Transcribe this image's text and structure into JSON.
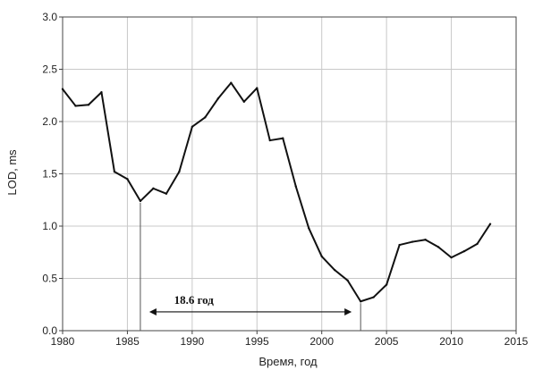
{
  "chart_data": {
    "type": "line",
    "title": "",
    "xlabel": "Время, год",
    "ylabel": "LOD, ms",
    "xlim": [
      1980,
      2015
    ],
    "ylim": [
      0.0,
      3.0
    ],
    "xticks": [
      1980,
      1985,
      1990,
      1995,
      2000,
      2005,
      2010,
      2015
    ],
    "yticks": [
      0.0,
      0.5,
      1.0,
      1.5,
      2.0,
      2.5,
      3.0
    ],
    "ytick_labels": [
      "0.0",
      "0.5",
      "1.0",
      "1.5",
      "2.0",
      "2.5",
      "3.0"
    ],
    "grid": true,
    "series": [
      {
        "x": [
          1980,
          1981,
          1982,
          1983,
          1984,
          1985,
          1986,
          1987,
          1988,
          1989,
          1990,
          1991,
          1992,
          1993,
          1994,
          1995,
          1996,
          1997,
          1998,
          1999,
          2000,
          2001,
          2002,
          2003,
          2004,
          2005,
          2006,
          2007,
          2008,
          2009,
          2010,
          2011,
          2012,
          2013
        ],
        "values": [
          2.31,
          2.15,
          2.16,
          2.28,
          1.52,
          1.45,
          1.24,
          1.36,
          1.31,
          1.52,
          1.95,
          2.04,
          2.22,
          2.37,
          2.19,
          2.32,
          1.82,
          1.84,
          1.38,
          0.98,
          0.71,
          0.58,
          0.48,
          0.28,
          0.32,
          0.44,
          0.82,
          0.85,
          0.87,
          0.8,
          0.7,
          0.76,
          0.83,
          1.02
        ]
      }
    ],
    "annotation": {
      "text": "18.6 год",
      "x_start": 1986,
      "x_end": 2003,
      "y": 0.18
    },
    "markers": [
      {
        "x": 1986,
        "y": 1.24
      },
      {
        "x": 2003,
        "y": 0.28
      }
    ]
  }
}
